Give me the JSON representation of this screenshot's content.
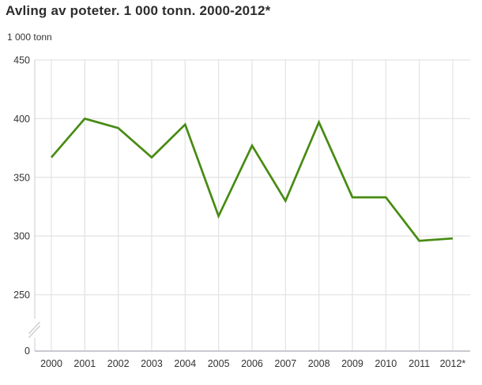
{
  "header": {
    "title": "Avling av poteter. 1 000 tonn. 2000-2012*",
    "unit_label": "1 000 tonn"
  },
  "colors": {
    "line": "#478b12",
    "grid": "#e4e4e4",
    "axis": "#d4d4d4",
    "baseline": "#c8c8cf",
    "break_mark": "#cccccc",
    "text": "#333333",
    "title_text": "#2d2d2d",
    "background": "#ffffff"
  },
  "chart_data": {
    "type": "line",
    "title": "Avling av poteter. 1 000 tonn. 2000-2012*",
    "ylabel": "1 000 tonn",
    "xlabel": "",
    "categories": [
      "2000",
      "2001",
      "2002",
      "2003",
      "2004",
      "2005",
      "2006",
      "2007",
      "2008",
      "2009",
      "2010",
      "2011",
      "2012*"
    ],
    "values": [
      367,
      400,
      392,
      367,
      395,
      317,
      377,
      330,
      397,
      333,
      333,
      296,
      298
    ],
    "y_ticks": [
      0,
      250,
      300,
      350,
      400,
      450
    ],
    "axis_break_between": [
      0,
      250
    ],
    "ylim": [
      0,
      450
    ],
    "display_ylim": [
      250,
      450
    ],
    "grid": true,
    "legend": "none"
  }
}
